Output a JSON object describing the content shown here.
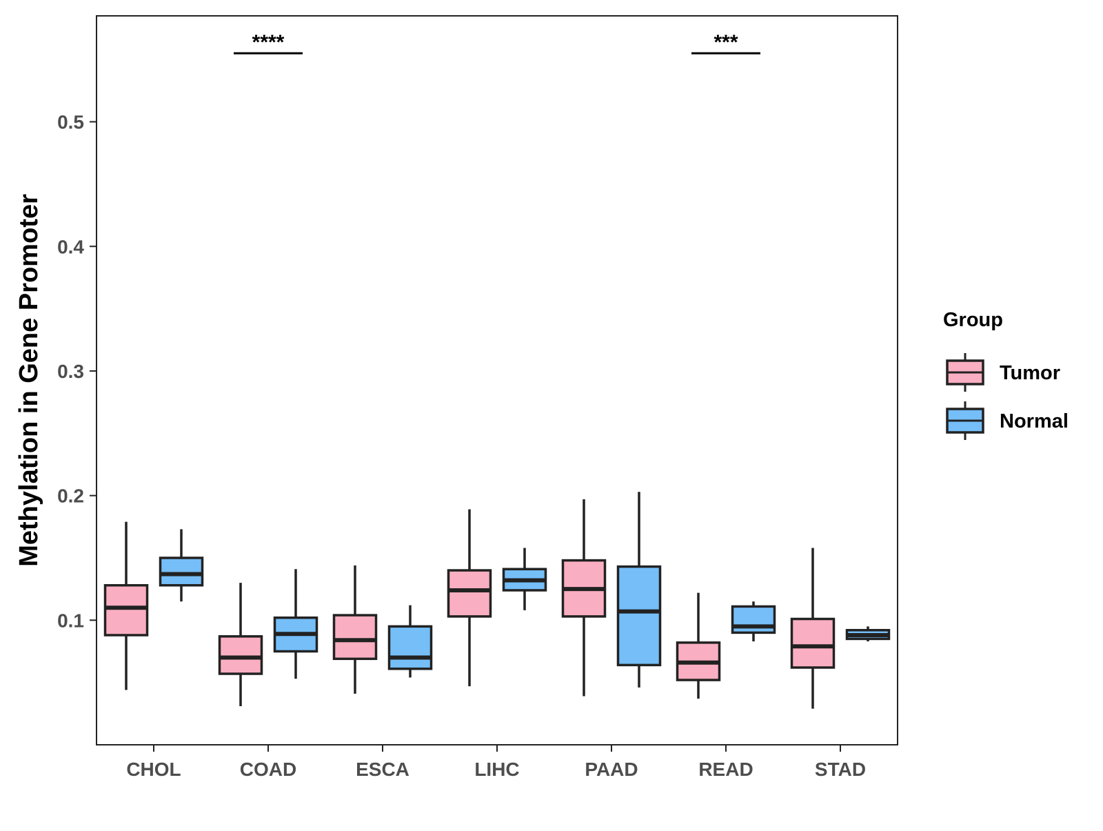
{
  "chart_data": {
    "type": "box",
    "ylabel": "Methylation in Gene Promoter",
    "xlabel": "",
    "ylim": [
      0.0,
      0.585
    ],
    "y_ticks": [
      0.1,
      0.2,
      0.3,
      0.4,
      0.5
    ],
    "y_tick_labels": [
      "0.1",
      "0.2",
      "0.3",
      "0.4",
      "0.5"
    ],
    "categories": [
      "CHOL",
      "COAD",
      "ESCA",
      "LIHC",
      "PAAD",
      "READ",
      "STAD"
    ],
    "legend": {
      "title": "Group",
      "position": "right",
      "entries": [
        {
          "name": "Tumor",
          "color": "#F9AFC1"
        },
        {
          "name": "Normal",
          "color": "#75BEF8"
        }
      ]
    },
    "series": [
      {
        "name": "Tumor",
        "color": "#F9AFC1",
        "boxes": [
          {
            "category": "CHOL",
            "whisker_low": 0.044,
            "q1": 0.088,
            "median": 0.11,
            "q3": 0.128,
            "whisker_high": 0.179
          },
          {
            "category": "COAD",
            "whisker_low": 0.031,
            "q1": 0.057,
            "median": 0.07,
            "q3": 0.087,
            "whisker_high": 0.13
          },
          {
            "category": "ESCA",
            "whisker_low": 0.041,
            "q1": 0.069,
            "median": 0.084,
            "q3": 0.104,
            "whisker_high": 0.144
          },
          {
            "category": "LIHC",
            "whisker_low": 0.047,
            "q1": 0.103,
            "median": 0.124,
            "q3": 0.14,
            "whisker_high": 0.189
          },
          {
            "category": "PAAD",
            "whisker_low": 0.039,
            "q1": 0.103,
            "median": 0.125,
            "q3": 0.148,
            "whisker_high": 0.197
          },
          {
            "category": "READ",
            "whisker_low": 0.037,
            "q1": 0.052,
            "median": 0.066,
            "q3": 0.082,
            "whisker_high": 0.122
          },
          {
            "category": "STAD",
            "whisker_low": 0.029,
            "q1": 0.062,
            "median": 0.079,
            "q3": 0.101,
            "whisker_high": 0.158
          }
        ]
      },
      {
        "name": "Normal",
        "color": "#75BEF8",
        "boxes": [
          {
            "category": "CHOL",
            "whisker_low": 0.115,
            "q1": 0.128,
            "median": 0.137,
            "q3": 0.15,
            "whisker_high": 0.173
          },
          {
            "category": "COAD",
            "whisker_low": 0.053,
            "q1": 0.075,
            "median": 0.089,
            "q3": 0.102,
            "whisker_high": 0.141
          },
          {
            "category": "ESCA",
            "whisker_low": 0.054,
            "q1": 0.061,
            "median": 0.07,
            "q3": 0.095,
            "whisker_high": 0.112
          },
          {
            "category": "LIHC",
            "whisker_low": 0.108,
            "q1": 0.124,
            "median": 0.132,
            "q3": 0.141,
            "whisker_high": 0.158
          },
          {
            "category": "PAAD",
            "whisker_low": 0.046,
            "q1": 0.064,
            "median": 0.107,
            "q3": 0.143,
            "whisker_high": 0.203
          },
          {
            "category": "READ",
            "whisker_low": 0.083,
            "q1": 0.09,
            "median": 0.095,
            "q3": 0.111,
            "whisker_high": 0.115
          },
          {
            "category": "STAD",
            "whisker_low": 0.083,
            "q1": 0.085,
            "median": 0.088,
            "q3": 0.092,
            "whisker_high": 0.095
          }
        ]
      }
    ],
    "annotations": [
      {
        "category": "COAD",
        "text": "****",
        "y": 0.555
      },
      {
        "category": "READ",
        "text": "***",
        "y": 0.555
      }
    ]
  }
}
